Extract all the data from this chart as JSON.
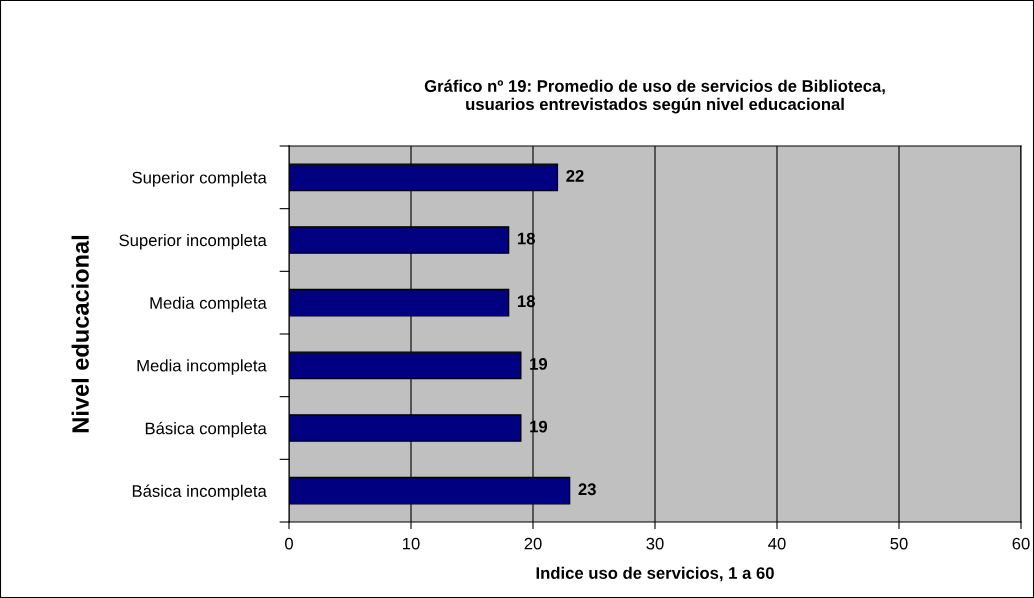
{
  "chart_data": {
    "type": "bar",
    "orientation": "horizontal",
    "title": "Gráfico nº 19: Promedio de uso de servicios de Biblioteca,\nusuarios entrevistados según nivel educacional",
    "xlabel": "Indice uso de servicios, 1 a 60",
    "ylabel": "Nivel educacional",
    "categories": [
      "Superior completa",
      "Superior incompleta",
      "Media completa",
      "Media incompleta",
      "Básica completa",
      "Básica incompleta"
    ],
    "values": [
      22,
      18,
      18,
      19,
      19,
      23
    ],
    "color": "#000080",
    "xlim": [
      0,
      60
    ],
    "xticks": [
      0,
      10,
      20,
      30,
      40,
      50,
      60
    ],
    "grid": "x",
    "data_labels": true,
    "legend": false
  }
}
